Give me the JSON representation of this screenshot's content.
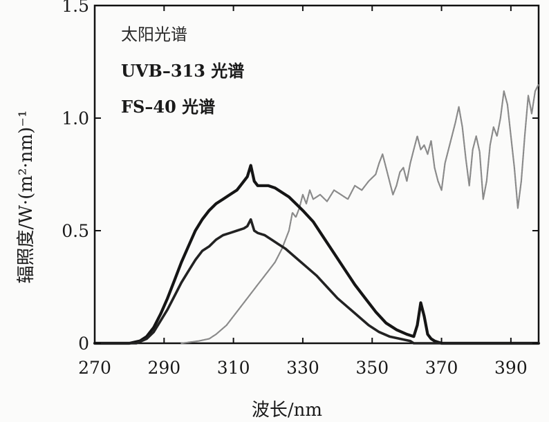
{
  "chart_data": {
    "type": "line",
    "xlabel": "波长/nm",
    "ylabel": "辐照度/W·(m²·nm)⁻¹",
    "xlim": [
      270,
      398
    ],
    "ylim": [
      0,
      1.5
    ],
    "x_ticks": [
      "270",
      "290",
      "310",
      "330",
      "350",
      "370",
      "390"
    ],
    "y_ticks": [
      "0",
      "0.5",
      "1.0",
      "1.5"
    ],
    "legend_position": "top-left",
    "legend": [
      "太阳光谱",
      "UVB–313 光谱",
      "FS–40 光谱"
    ],
    "grid": false,
    "series": [
      {
        "name": "太阳光谱",
        "color": "#8a8a8a",
        "x": [
          295,
          300,
          303,
          305,
          308,
          311,
          314,
          317,
          320,
          322,
          324,
          326,
          327,
          328,
          329,
          330,
          331,
          332,
          333,
          335,
          337,
          339,
          341,
          343,
          345,
          347,
          349,
          351,
          352,
          353,
          354,
          355,
          356,
          357,
          358,
          359,
          360,
          361,
          362,
          363,
          364,
          365,
          366,
          367,
          368,
          369,
          370,
          371,
          372,
          373,
          374,
          375,
          376,
          377,
          378,
          379,
          380,
          381,
          382,
          383,
          384,
          385,
          386,
          387,
          388,
          389,
          390,
          391,
          392,
          393,
          394,
          395,
          396,
          397,
          398
        ],
        "y": [
          0.0,
          0.01,
          0.02,
          0.04,
          0.08,
          0.14,
          0.2,
          0.26,
          0.32,
          0.36,
          0.42,
          0.5,
          0.58,
          0.56,
          0.6,
          0.66,
          0.62,
          0.68,
          0.64,
          0.66,
          0.63,
          0.68,
          0.66,
          0.64,
          0.7,
          0.68,
          0.72,
          0.75,
          0.8,
          0.84,
          0.78,
          0.72,
          0.66,
          0.7,
          0.76,
          0.78,
          0.72,
          0.8,
          0.86,
          0.92,
          0.86,
          0.88,
          0.84,
          0.9,
          0.78,
          0.72,
          0.68,
          0.8,
          0.86,
          0.92,
          0.98,
          1.05,
          0.96,
          0.82,
          0.7,
          0.86,
          0.92,
          0.85,
          0.64,
          0.72,
          0.88,
          0.96,
          0.92,
          1.0,
          1.12,
          1.06,
          0.92,
          0.78,
          0.6,
          0.72,
          0.92,
          1.1,
          1.02,
          1.12,
          1.15
        ]
      },
      {
        "name": "UVB–313 光谱",
        "color": "#151515",
        "x": [
          270,
          280,
          283,
          285,
          287,
          289,
          291,
          293,
          295,
          297,
          299,
          301,
          303,
          305,
          307,
          309,
          311,
          312,
          313,
          314,
          315,
          316,
          317,
          318,
          320,
          322,
          324,
          326,
          328,
          330,
          333,
          336,
          339,
          342,
          345,
          348,
          351,
          354,
          357,
          360,
          362,
          363,
          364,
          365,
          366,
          367,
          368,
          370,
          375,
          380,
          390,
          398
        ],
        "y": [
          0.0,
          0.0,
          0.01,
          0.03,
          0.07,
          0.13,
          0.2,
          0.28,
          0.36,
          0.43,
          0.5,
          0.55,
          0.59,
          0.62,
          0.64,
          0.66,
          0.68,
          0.7,
          0.72,
          0.74,
          0.79,
          0.72,
          0.7,
          0.7,
          0.7,
          0.69,
          0.67,
          0.65,
          0.62,
          0.59,
          0.54,
          0.47,
          0.4,
          0.33,
          0.26,
          0.2,
          0.14,
          0.09,
          0.06,
          0.04,
          0.03,
          0.08,
          0.18,
          0.12,
          0.04,
          0.02,
          0.01,
          0.0,
          0.0,
          0.0,
          0.0,
          0.0
        ]
      },
      {
        "name": "FS–40 光谱",
        "color": "#222222",
        "x": [
          270,
          282,
          285,
          287,
          289,
          291,
          293,
          295,
          297,
          299,
          301,
          303,
          305,
          307,
          309,
          311,
          313,
          314,
          315,
          316,
          317,
          319,
          321,
          323,
          325,
          328,
          331,
          334,
          337,
          340,
          343,
          346,
          349,
          352,
          355,
          358,
          361,
          362,
          364,
          366,
          368,
          370,
          375,
          380,
          390,
          398
        ],
        "y": [
          0.0,
          0.0,
          0.02,
          0.05,
          0.1,
          0.15,
          0.21,
          0.27,
          0.32,
          0.37,
          0.41,
          0.43,
          0.46,
          0.48,
          0.49,
          0.5,
          0.51,
          0.52,
          0.55,
          0.5,
          0.49,
          0.48,
          0.46,
          0.44,
          0.42,
          0.38,
          0.34,
          0.3,
          0.25,
          0.2,
          0.16,
          0.12,
          0.08,
          0.05,
          0.03,
          0.02,
          0.01,
          0.0,
          0.0,
          0.0,
          0.0,
          0.0,
          0.0,
          0.0,
          0.0,
          0.0
        ]
      }
    ]
  }
}
